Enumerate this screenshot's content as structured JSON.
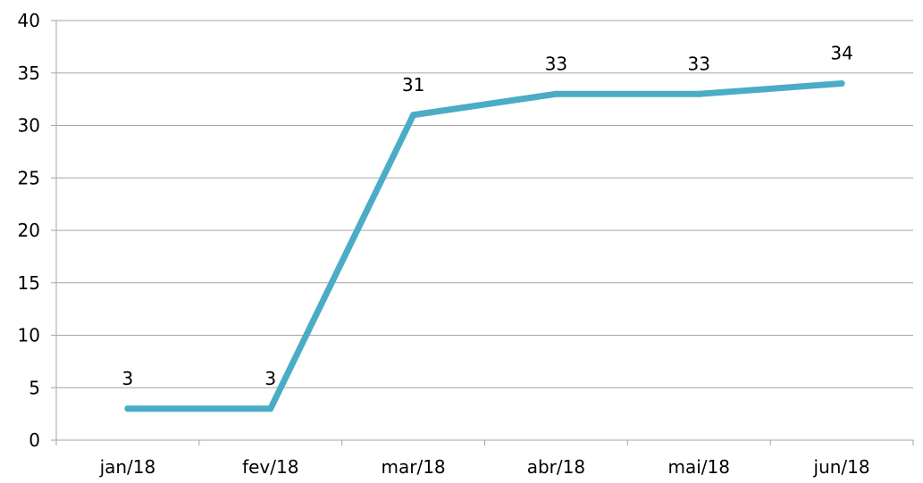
{
  "chart_data": {
    "type": "line",
    "title": "",
    "xlabel": "",
    "ylabel": "",
    "categories": [
      "jan/18",
      "fev/18",
      "mar/18",
      "abr/18",
      "mai/18",
      "jun/18"
    ],
    "series": [
      {
        "values": [
          3,
          3,
          31,
          33,
          33,
          34
        ]
      }
    ],
    "ylim": [
      0,
      40
    ],
    "yticks": [
      0,
      5,
      10,
      15,
      20,
      25,
      30,
      35,
      40
    ],
    "grid": true,
    "legend": "none",
    "data_labels": true,
    "colors": {
      "series": "#4bacc6",
      "grid": "#a6a6a6",
      "text": "#000000"
    }
  }
}
